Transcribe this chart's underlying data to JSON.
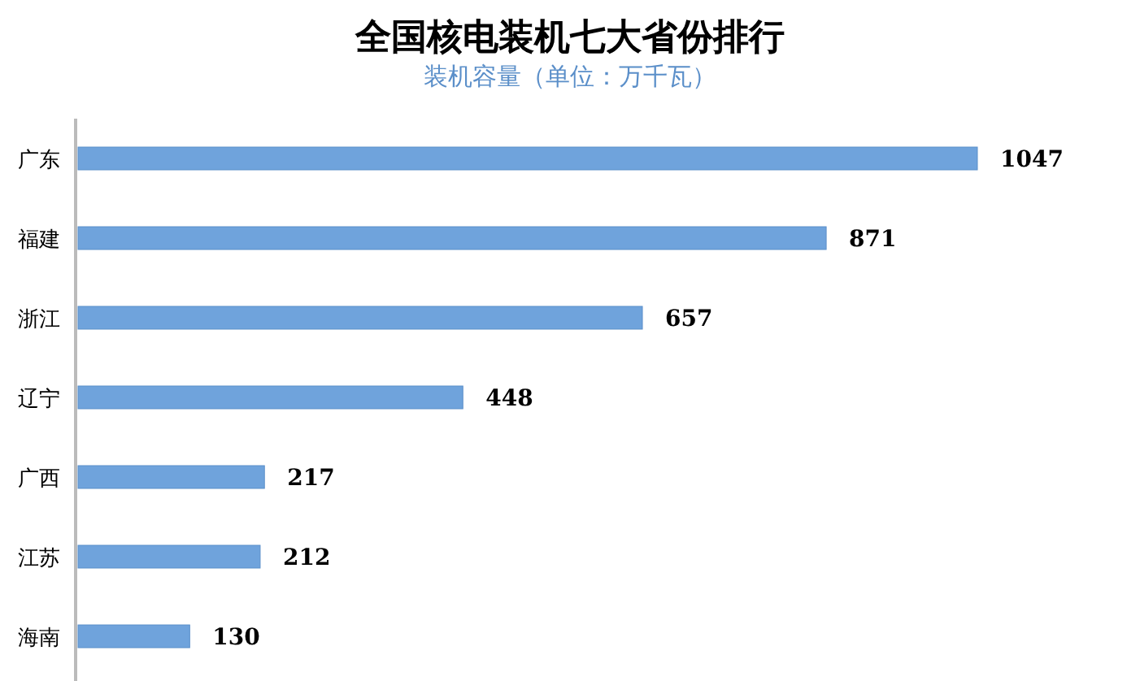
{
  "chart_data": {
    "type": "bar",
    "orientation": "horizontal",
    "title": "全国核电装机七大省份排行",
    "subtitle": "装机容量（单位：万千瓦）",
    "categories": [
      "广东",
      "福建",
      "浙江",
      "辽宁",
      "广西",
      "江苏",
      "海南"
    ],
    "values": [
      1047,
      871,
      657,
      448,
      217,
      212,
      130
    ],
    "color": "#6fa3dc",
    "data_labels": true,
    "tick_labels": "y"
  }
}
